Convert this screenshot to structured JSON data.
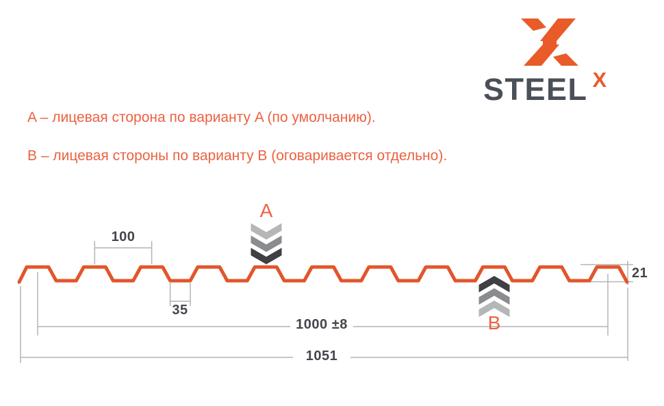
{
  "theme": {
    "bg": "#ffffff",
    "profile-orange": "#e2552a",
    "note-orange": "#ec6142",
    "logo-orange": "#e95b28",
    "steel-dark": "#4b5058",
    "dim-line": "#b4b4b6",
    "dim-text": "#43464b",
    "chevron-light": "#b5b6b8",
    "chevron-mid": "#8a8c8e",
    "chevron-dark": "#3e4043"
  },
  "logo": {
    "brand": "STEEL",
    "suffix": "X"
  },
  "notes": {
    "line_a": "A – лицевая сторона по варианту A (по умолчанию).",
    "line_b": "B – лицевая стороны по варианту B (оговаривается отдельно)."
  },
  "diagram": {
    "type": "trapezoidal-sheet-profile-cross-section",
    "marker_a": "A",
    "marker_b": "B",
    "dimensions": {
      "pitch": "100",
      "valley_width": "35",
      "profile_height": "21",
      "working_width": "1000 ±8",
      "overall_width": "1051"
    }
  }
}
